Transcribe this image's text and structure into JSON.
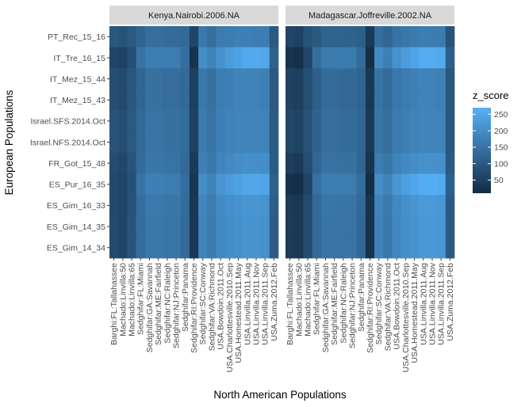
{
  "chart_data": {
    "type": "heatmap",
    "xlabel": "North American Populations",
    "ylabel": "European Populations",
    "fill_label": "z_score",
    "colorbar": {
      "low_color": "#132B43",
      "high_color": "#56B1F7",
      "min": 10,
      "max": 270,
      "ticks": [
        50,
        100,
        150,
        200,
        250
      ]
    },
    "facets": [
      "Kenya.Nairobi.2006.NA",
      "Madagascar.Joffreville.2002.NA"
    ],
    "x_categories": [
      "Barghi:FL:Tallahassee",
      "Machado:Linvilla:50",
      "Machado:Linvilla:65",
      "Sedghifar:FL:Miami",
      "Sedghifar:GA:Savannah",
      "Sedghifar:ME:Fairfield",
      "Sedghifar:NC:Raleigh",
      "Sedghifar:NJ:Princeton",
      "Sedghifar:Panama",
      "Sedghifar:RI:Providence",
      "Sedghifar:SC:Conway",
      "Sedghifar:VA:Richmond",
      "USA.Bowdoin.2011.Oct",
      "USA.Charlottesville.2010.Sep",
      "USA.Homestead.2011.May",
      "USA.Linvilla.2011.Aug",
      "USA.Linvilla.2011.Nov",
      "USA.Linvilla.2011.Sep",
      "USA.Zuma.2012.Feb"
    ],
    "y_categories": [
      "PT_Rec_15_16",
      "IT_Tre_16_15",
      "IT_Mez_15_44",
      "IT_Mez_15_43",
      "Israel.SFS.2014.Oct",
      "Israel.NFS.2014.Oct",
      "FR_Got_15_48",
      "ES_Pur_16_35",
      "ES_Gim_16_33",
      "ES_Gim_14_35",
      "ES_Gim_14_34"
    ],
    "z_values": [
      [
        [
          95,
          85,
          100,
          120,
          140,
          140,
          135,
          135,
          130,
          60,
          160,
          140,
          165,
          170,
          175,
          175,
          170,
          170,
          100
        ],
        [
          60,
          55,
          80,
          150,
          170,
          170,
          170,
          170,
          140,
          25,
          200,
          180,
          210,
          230,
          240,
          255,
          255,
          250,
          115
        ],
        [
          80,
          70,
          95,
          125,
          145,
          145,
          140,
          140,
          130,
          50,
          160,
          145,
          170,
          175,
          180,
          180,
          178,
          175,
          100
        ],
        [
          80,
          70,
          95,
          125,
          145,
          145,
          140,
          140,
          130,
          50,
          160,
          145,
          170,
          175,
          180,
          180,
          178,
          175,
          100
        ],
        [
          90,
          80,
          100,
          130,
          150,
          150,
          145,
          145,
          135,
          55,
          165,
          150,
          175,
          180,
          185,
          185,
          183,
          180,
          105
        ],
        [
          90,
          80,
          100,
          130,
          150,
          150,
          145,
          145,
          135,
          55,
          165,
          150,
          175,
          180,
          185,
          185,
          183,
          180,
          105
        ],
        [
          75,
          65,
          90,
          135,
          155,
          155,
          150,
          150,
          130,
          40,
          175,
          160,
          185,
          195,
          200,
          205,
          203,
          200,
          105
        ],
        [
          70,
          60,
          85,
          150,
          175,
          175,
          170,
          170,
          140,
          30,
          200,
          180,
          215,
          230,
          240,
          250,
          250,
          245,
          115
        ],
        [
          70,
          60,
          88,
          140,
          162,
          162,
          158,
          158,
          135,
          35,
          185,
          168,
          195,
          205,
          212,
          218,
          216,
          212,
          108
        ],
        [
          72,
          62,
          90,
          138,
          160,
          160,
          155,
          155,
          133,
          38,
          182,
          165,
          192,
          202,
          208,
          214,
          212,
          208,
          106
        ],
        [
          72,
          62,
          90,
          138,
          160,
          160,
          155,
          155,
          133,
          38,
          182,
          165,
          192,
          202,
          208,
          214,
          212,
          208,
          106
        ]
      ],
      [
        [
          60,
          55,
          85,
          100,
          120,
          120,
          118,
          118,
          110,
          40,
          140,
          125,
          150,
          158,
          165,
          170,
          168,
          165,
          90
        ],
        [
          25,
          20,
          60,
          140,
          165,
          165,
          165,
          165,
          135,
          15,
          195,
          175,
          210,
          230,
          245,
          260,
          262,
          255,
          110
        ],
        [
          55,
          50,
          80,
          110,
          135,
          135,
          130,
          130,
          120,
          35,
          150,
          135,
          160,
          168,
          175,
          180,
          178,
          175,
          95
        ],
        [
          55,
          50,
          80,
          110,
          135,
          135,
          130,
          130,
          120,
          35,
          150,
          135,
          160,
          168,
          175,
          180,
          178,
          175,
          95
        ],
        [
          65,
          58,
          88,
          118,
          140,
          140,
          136,
          136,
          125,
          40,
          155,
          140,
          165,
          172,
          180,
          184,
          182,
          180,
          98
        ],
        [
          65,
          58,
          88,
          118,
          140,
          140,
          136,
          136,
          125,
          40,
          155,
          140,
          165,
          172,
          180,
          184,
          182,
          180,
          98
        ],
        [
          45,
          40,
          75,
          125,
          148,
          148,
          145,
          145,
          125,
          28,
          170,
          155,
          180,
          192,
          200,
          208,
          208,
          205,
          100
        ],
        [
          22,
          18,
          58,
          145,
          170,
          170,
          168,
          168,
          138,
          15,
          200,
          180,
          215,
          235,
          248,
          262,
          264,
          258,
          112
        ],
        [
          40,
          35,
          72,
          132,
          155,
          155,
          152,
          152,
          130,
          25,
          180,
          162,
          192,
          205,
          215,
          225,
          225,
          220,
          104
        ],
        [
          42,
          37,
          74,
          130,
          153,
          153,
          150,
          150,
          128,
          26,
          178,
          160,
          190,
          203,
          212,
          222,
          222,
          218,
          103
        ],
        [
          42,
          37,
          74,
          130,
          153,
          153,
          150,
          150,
          128,
          26,
          178,
          160,
          190,
          203,
          212,
          222,
          222,
          218,
          103
        ]
      ]
    ]
  }
}
